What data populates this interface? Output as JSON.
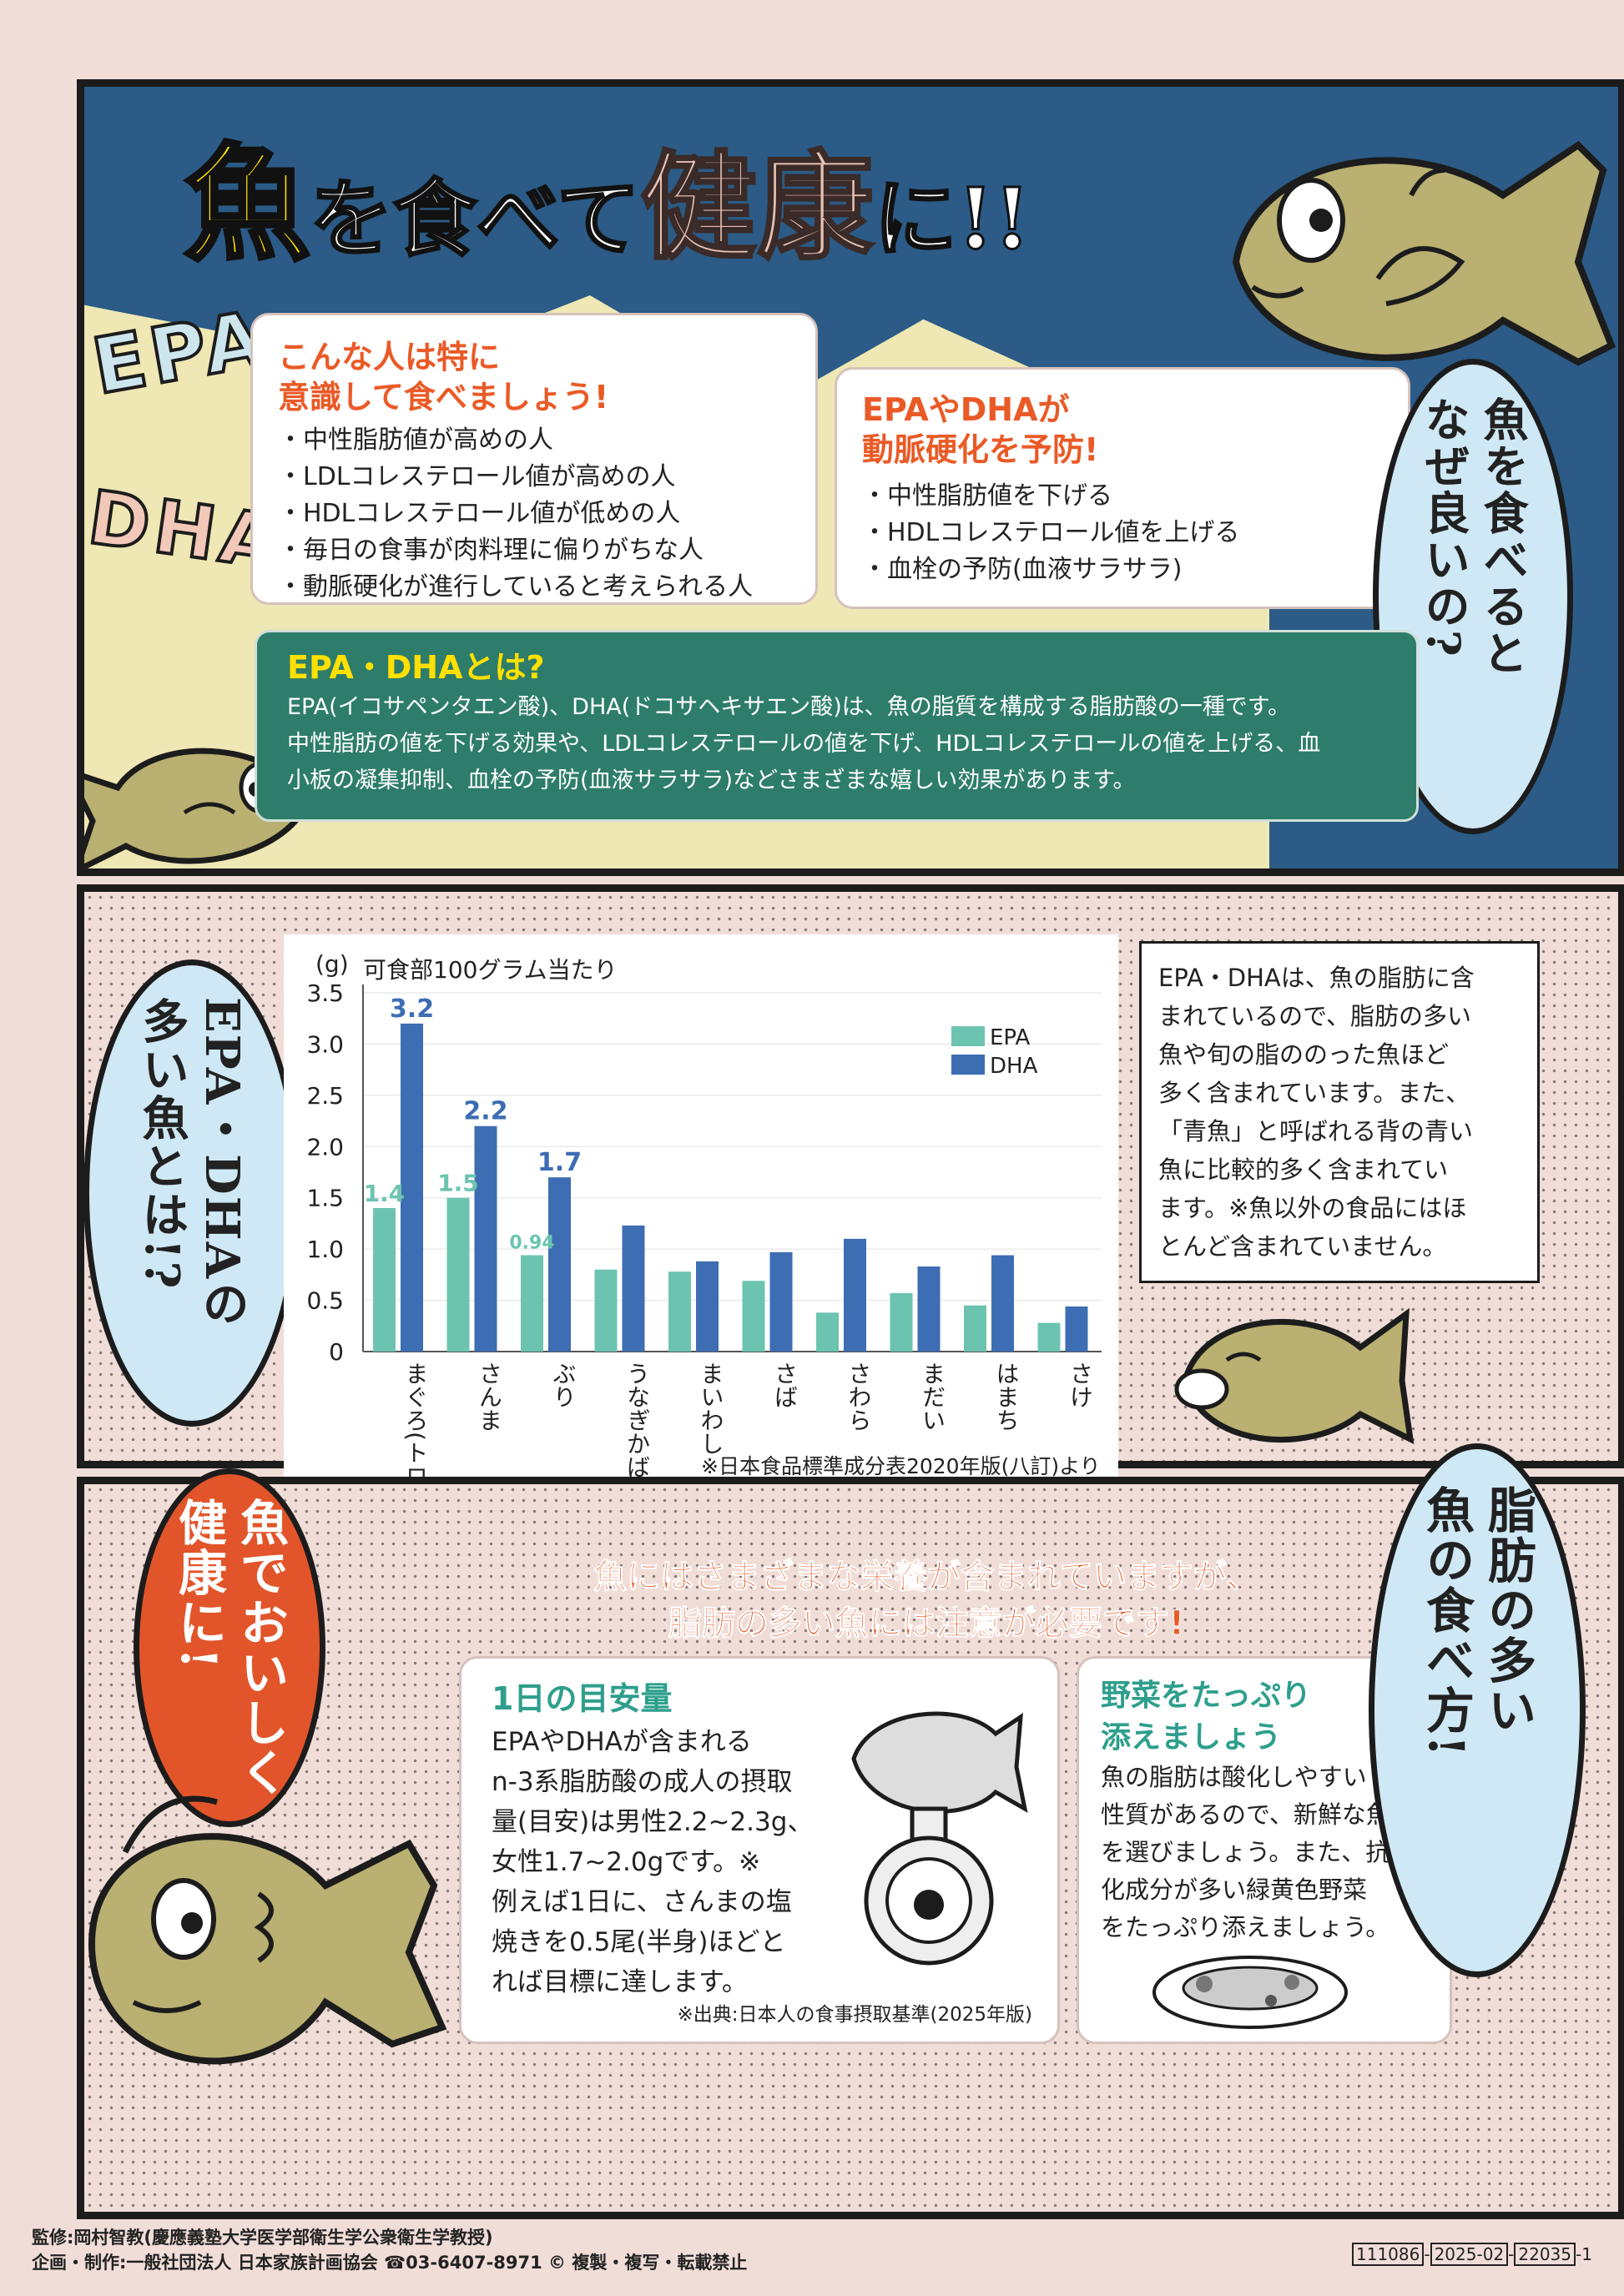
{
  "header": {
    "title_fish": "魚",
    "title_mid": "を食べて",
    "title_health": "健康",
    "title_end": "に!!"
  },
  "deco": {
    "epa": "EPA",
    "dha": "DHA"
  },
  "who_box": {
    "heading_line1": "こんな人は特に",
    "heading_line2": "意識して食べましょう!",
    "items": [
      "・中性脂肪値が高めの人",
      "・LDLコレステロール値が高めの人",
      "・HDLコレステロール値が低めの人",
      "・毎日の食事が肉料理に偏りがちな人",
      "・動脈硬化が進行していると考えられる人"
    ]
  },
  "prevent_box": {
    "heading_line1": "EPAやDHAが",
    "heading_line2": "動脈硬化を予防!",
    "items": [
      "・中性脂肪値を下げる",
      "・HDLコレステロール値を上げる",
      "・血栓の予防(血液サラサラ)"
    ]
  },
  "why_bubble": {
    "col1": "魚を食べると",
    "col2": "なぜ良いの?"
  },
  "about": {
    "heading": "EPA・DHAとは?",
    "line1": "EPA(イコサペンタエン酸)、DHA(ドコサヘキサエン酸)は、魚の脂質を構成する脂肪酸の一種です。",
    "line2": "中性脂肪の値を下げる効果や、LDLコレステロールの値を下げ、HDLコレステロールの値を上げる、血",
    "line3": "小板の凝集抑制、血栓の予防(血液サラサラ)などさまざまな嬉しい効果があります。"
  },
  "which_bubble": {
    "col1": "EPA・DHAの",
    "col2": "多い魚とは!?"
  },
  "chart_data": {
    "type": "bar",
    "title": "可食部100グラム当たり",
    "ylabel": "(g)",
    "ylim": [
      0,
      3.5
    ],
    "yticks": [
      "0",
      "0.5",
      "1.0",
      "1.5",
      "2.0",
      "2.5",
      "3.0",
      "3.5"
    ],
    "categories": [
      "まぐろ(トロ)",
      "さんま",
      "ぶり",
      "うなぎかば焼き",
      "まいわし",
      "さば",
      "さわら",
      "まだい",
      "はまち",
      "さけ"
    ],
    "series": [
      {
        "name": "EPA",
        "color": "#6cc4b0",
        "values": [
          1.4,
          1.5,
          0.94,
          0.8,
          0.78,
          0.69,
          0.38,
          0.57,
          0.45,
          0.28
        ]
      },
      {
        "name": "DHA",
        "color": "#3d6db3",
        "values": [
          3.2,
          2.2,
          1.7,
          1.23,
          0.88,
          0.97,
          1.1,
          0.83,
          0.94,
          0.44
        ]
      }
    ],
    "data_labels": {
      "epa": [
        "1.4",
        "1.5",
        "0.94"
      ],
      "dha": [
        "3.2",
        "2.2",
        "1.7"
      ]
    },
    "legend_position": "top-right",
    "source": "※日本食品標準成分表2020年版(八訂)より"
  },
  "chart_note": {
    "lines": [
      "EPA・DHAは、魚の脂肪に含",
      "まれているので、脂肪の多い",
      "魚や旬の脂ののった魚ほど",
      "多く含まれています。また、",
      "「青魚」と呼ばれる背の青い",
      "魚に比較的多く含まれてい",
      "ます。※魚以外の食品にはほ",
      "とんど含まれていません。"
    ]
  },
  "healthy_bubble": {
    "col1": "魚でおいしく",
    "col2": "健康に!"
  },
  "caution": {
    "line1": "魚にはさまざまな栄養が含まれていますが、",
    "line2": "脂肪の多い魚には注意が必要です!"
  },
  "daily": {
    "heading": "1日の目安量",
    "lines": [
      "EPAやDHAが含まれる",
      "n-3系脂肪酸の成人の摂取",
      "量(目安)は男性2.2~2.3g、",
      "女性1.7~2.0gです。※",
      "例えば1日に、さんまの塩",
      "焼きを0.5尾(半身)ほどと",
      "れば目標に達します。"
    ],
    "source": "※出典:日本人の食事摂取基準(2025年版)"
  },
  "veg": {
    "heading_line1": "野菜をたっぷり",
    "heading_line2": "添えましょう",
    "lines": [
      "魚の脂肪は酸化しやすい",
      "性質があるので、新鮮な魚",
      "を選びましょう。また、抗酸",
      "化成分が多い緑黄色野菜",
      "をたっぷり添えましょう。"
    ]
  },
  "eat_bubble": {
    "col1": "脂肪の多い",
    "col2": "魚の食べ方!"
  },
  "footer": {
    "line1": "監修:岡村智教(慶應義塾大学医学部衛生学公衆衛生学教授)",
    "line2": "企画・制作:一般社団法人 日本家族計画協会 ☎03-6407-8971 © 複製・複写・転載禁止",
    "code1": "111086",
    "code2": "2025-02",
    "code3": "22035",
    "code4": "-1"
  },
  "colors": {
    "accent": "#ea5a26",
    "teal": "#2e7d6a",
    "navy": "#2b5b86",
    "fish": "#b9b071"
  }
}
